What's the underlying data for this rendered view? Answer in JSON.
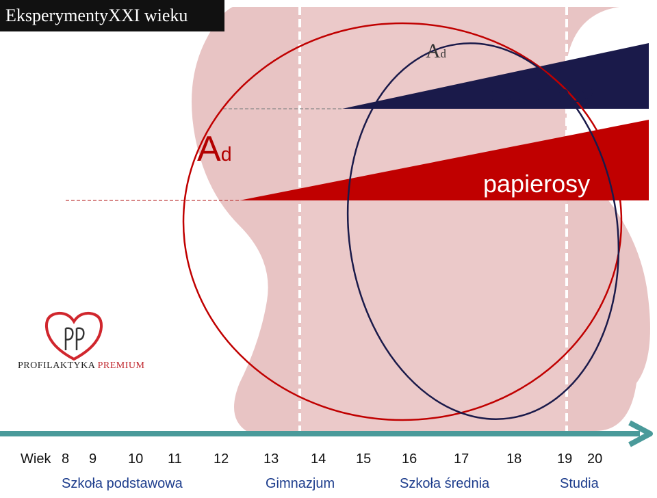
{
  "title": "EksperymentyXXI wieku",
  "labels": {
    "ad_small_main": "A",
    "ad_small_sub": "d",
    "ad_big_main": "A",
    "ad_big_sub": "d",
    "papierosy_top": "papierosy",
    "papierosy_bottom": "papierosy"
  },
  "logo": {
    "text_main": "PROFILAKTYKA",
    "text_accent": "PREMIUM"
  },
  "timeline": {
    "label": "Wiek",
    "ages": [
      "8",
      "9",
      "10",
      "11",
      "12",
      "13",
      "14",
      "15",
      "16",
      "17",
      "18",
      "19",
      "20"
    ]
  },
  "schools": [
    "Szkoła podstawowa",
    "Gimnazjum",
    "Szkoła średnia",
    "Studia"
  ],
  "colors": {
    "pink": "#e8c4c4",
    "red": "#c00000",
    "navy": "#1a1a4a",
    "teal_arrow": "#4a9a9a",
    "school_text": "#1c3c8c"
  }
}
